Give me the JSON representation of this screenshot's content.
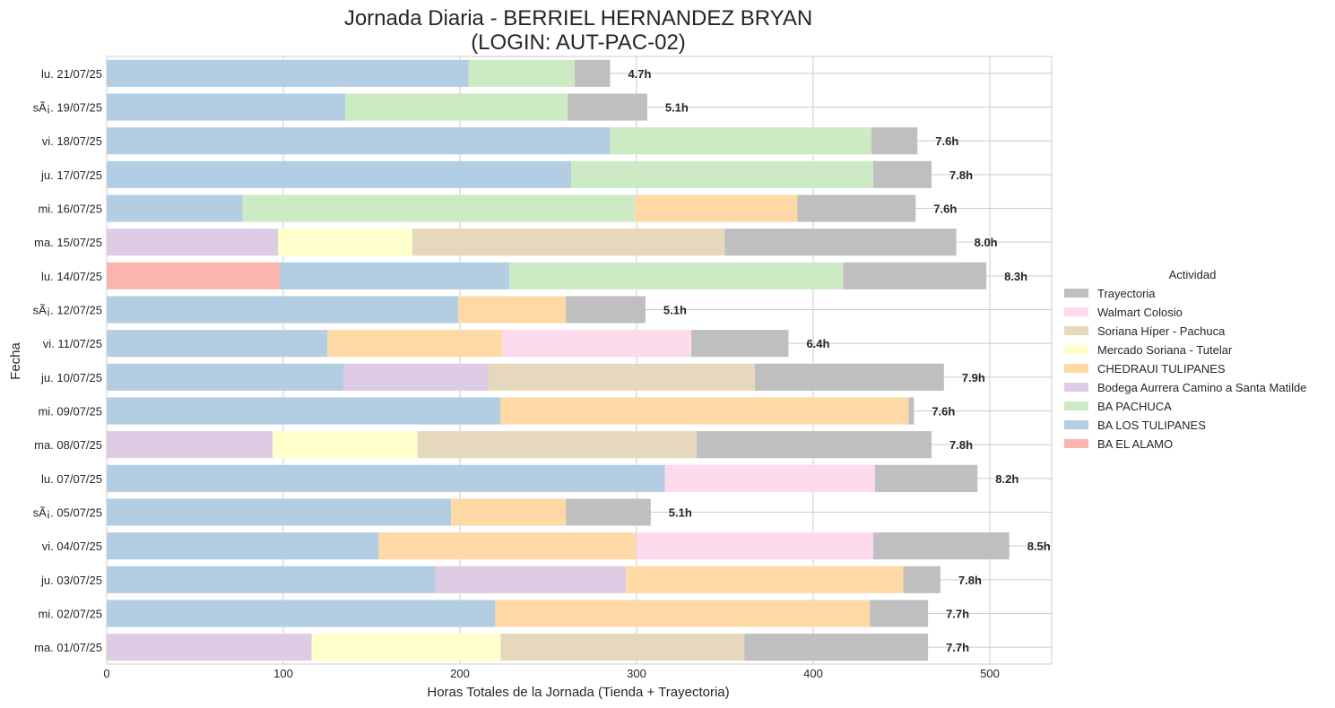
{
  "chart_data": {
    "type": "bar",
    "orientation": "horizontal",
    "stacked": true,
    "title": "Jornada Diaria - BERRIEL HERNANDEZ BRYAN\n(LOGIN: AUT-PAC-02)",
    "xlabel": "Horas Totales de la Jornada (Tienda + Trayectoria)",
    "ylabel": "Fecha",
    "xlim": [
      0,
      535
    ],
    "xticks": [
      0,
      100,
      200,
      300,
      400,
      500
    ],
    "grid": true,
    "legend_title": "Actividad",
    "legend_position": "center-right",
    "legend_entries": [
      "Trayectoria",
      "Walmart Colosio",
      "Soriana Híper - Pachuca",
      "Mercado Soriana - Tutelar",
      "CHEDRAUI TULIPANES",
      "Bodega Aurrera Camino a Santa Matilde",
      "BA PACHUCA",
      "BA LOS TULIPANES",
      "BA EL ALAMO"
    ],
    "colors": {
      "BA EL ALAMO": "#fbb4ae",
      "BA LOS TULIPANES": "#b3cde3",
      "BA PACHUCA": "#ccebc5",
      "Bodega Aurrera Camino a Santa Matilde": "#decbe4",
      "CHEDRAUI TULIPANES": "#fed9a6",
      "Mercado Soriana - Tutelar": "#ffffcc",
      "Soriana Híper - Pachuca": "#e5d8bd",
      "Walmart Colosio": "#fddaec",
      "Trayectoria": "#bfbfbf"
    },
    "stack_order": [
      "BA EL ALAMO",
      "BA LOS TULIPANES",
      "BA PACHUCA",
      "Bodega Aurrera Camino a Santa Matilde",
      "CHEDRAUI TULIPANES",
      "Mercado Soriana - Tutelar",
      "Soriana Híper - Pachuca",
      "Walmart Colosio",
      "Trayectoria"
    ],
    "categories": [
      "lu. 21/07/25",
      "sÃ¡. 19/07/25",
      "vi. 18/07/25",
      "ju. 17/07/25",
      "mi. 16/07/25",
      "ma. 15/07/25",
      "lu. 14/07/25",
      "sÃ¡. 12/07/25",
      "vi. 11/07/25",
      "ju. 10/07/25",
      "mi. 09/07/25",
      "ma. 08/07/25",
      "lu. 07/07/25",
      "sÃ¡. 05/07/25",
      "vi. 04/07/25",
      "ju. 03/07/25",
      "mi. 02/07/25",
      "ma. 01/07/25"
    ],
    "totals_labels": [
      "4.7h",
      "5.1h",
      "7.6h",
      "7.8h",
      "7.6h",
      "8.0h",
      "8.3h",
      "5.1h",
      "6.4h",
      "7.9h",
      "7.6h",
      "7.8h",
      "8.2h",
      "5.1h",
      "8.5h",
      "7.8h",
      "7.7h",
      "7.7h"
    ],
    "series": [
      {
        "name": "BA EL ALAMO",
        "values": [
          0,
          0,
          0,
          0,
          0,
          0,
          98,
          0,
          0,
          0,
          0,
          0,
          0,
          0,
          0,
          0,
          0,
          0
        ]
      },
      {
        "name": "BA LOS TULIPANES",
        "values": [
          205,
          135,
          285,
          263,
          77,
          0,
          130,
          199,
          125,
          134,
          223,
          0,
          316,
          195,
          154,
          186,
          220,
          0
        ]
      },
      {
        "name": "BA PACHUCA",
        "values": [
          60,
          126,
          148,
          171,
          222,
          0,
          189,
          0,
          0,
          0,
          0,
          0,
          0,
          0,
          0,
          0,
          0,
          0
        ]
      },
      {
        "name": "Bodega Aurrera Camino a Santa Matilde",
        "values": [
          0,
          0,
          0,
          0,
          0,
          97,
          0,
          0,
          0,
          82,
          0,
          94,
          0,
          0,
          0,
          108,
          0,
          116
        ]
      },
      {
        "name": "CHEDRAUI TULIPANES",
        "values": [
          0,
          0,
          0,
          0,
          92,
          0,
          0,
          61,
          99,
          0,
          231,
          0,
          0,
          65,
          146,
          157,
          212,
          0
        ]
      },
      {
        "name": "Mercado Soriana - Tutelar",
        "values": [
          0,
          0,
          0,
          0,
          0,
          76,
          0,
          0,
          0,
          0,
          0,
          82,
          0,
          0,
          0,
          0,
          0,
          107
        ]
      },
      {
        "name": "Soriana Híper - Pachuca",
        "values": [
          0,
          0,
          0,
          0,
          0,
          177,
          0,
          0,
          0,
          151,
          0,
          158,
          0,
          0,
          0,
          0,
          0,
          138
        ]
      },
      {
        "name": "Walmart Colosio",
        "values": [
          0,
          0,
          0,
          0,
          0,
          0,
          0,
          0,
          107,
          0,
          0,
          0,
          119,
          0,
          134,
          0,
          0,
          0
        ]
      },
      {
        "name": "Trayectoria",
        "values": [
          20,
          45,
          26,
          33,
          67,
          131,
          81,
          45,
          55,
          107,
          3,
          133,
          58,
          48,
          77,
          21,
          33,
          104
        ]
      }
    ]
  }
}
